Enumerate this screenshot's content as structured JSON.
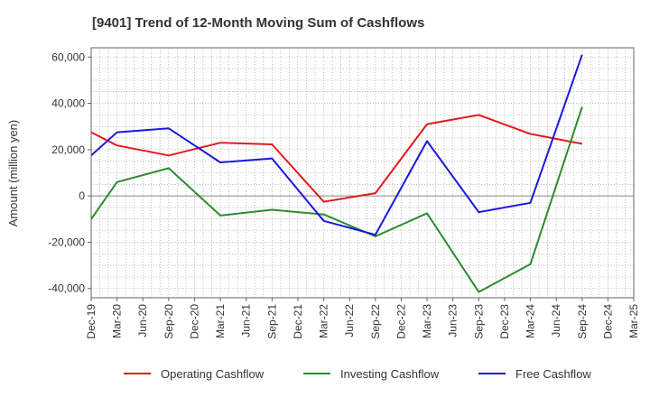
{
  "chart_data": {
    "type": "line",
    "title": "[9401]  Trend of 12-Month Moving Sum of Cashflows",
    "ylabel": "Amount (million yen)",
    "xlabel": "",
    "ylim": [
      -44000,
      64000
    ],
    "y_ticks": [
      -40000,
      -20000,
      0,
      20000,
      40000,
      60000
    ],
    "y_tick_labels": [
      "-40,000",
      "-20,000",
      "0",
      "20,000",
      "40,000",
      "60,000"
    ],
    "x_tick_labels": [
      "Dec-19",
      "Mar-20",
      "Jun-20",
      "Sep-20",
      "Dec-20",
      "Mar-21",
      "Jun-21",
      "Sep-21",
      "Dec-21",
      "Mar-22",
      "Jun-22",
      "Sep-22",
      "Dec-22",
      "Mar-23",
      "Jun-23",
      "Sep-23",
      "Dec-23",
      "Mar-24",
      "Jun-24",
      "Sep-24",
      "Dec-24",
      "Mar-25"
    ],
    "grid": true,
    "legend_position": "bottom",
    "series": [
      {
        "name": "Operating Cashflow",
        "color": "#e41a1c",
        "x": [
          "Dec-19",
          "Mar-20",
          "Sep-20",
          "Mar-21",
          "Sep-21",
          "Mar-22",
          "Sep-22",
          "Mar-23",
          "Sep-23",
          "Mar-24",
          "Sep-24"
        ],
        "values": [
          27500,
          21800,
          17500,
          23000,
          22300,
          -2500,
          1200,
          31000,
          35000,
          26800,
          22500
        ]
      },
      {
        "name": "Investing Cashflow",
        "color": "#2e8b2e",
        "x": [
          "Dec-19",
          "Mar-20",
          "Sep-20",
          "Mar-21",
          "Sep-21",
          "Mar-22",
          "Sep-22",
          "Mar-23",
          "Sep-23",
          "Mar-24",
          "Sep-24"
        ],
        "values": [
          -10000,
          6000,
          12000,
          -8500,
          -6000,
          -8000,
          -17500,
          -7500,
          -41500,
          -29500,
          38500
        ]
      },
      {
        "name": "Free Cashflow",
        "color": "#1a1adb",
        "x": [
          "Dec-19",
          "Mar-20",
          "Sep-20",
          "Mar-21",
          "Sep-21",
          "Mar-22",
          "Sep-22",
          "Mar-23",
          "Sep-23",
          "Mar-24",
          "Sep-24"
        ],
        "values": [
          17500,
          27500,
          29200,
          14500,
          16200,
          -10800,
          -16800,
          23700,
          -7000,
          -3000,
          61000
        ]
      }
    ]
  }
}
